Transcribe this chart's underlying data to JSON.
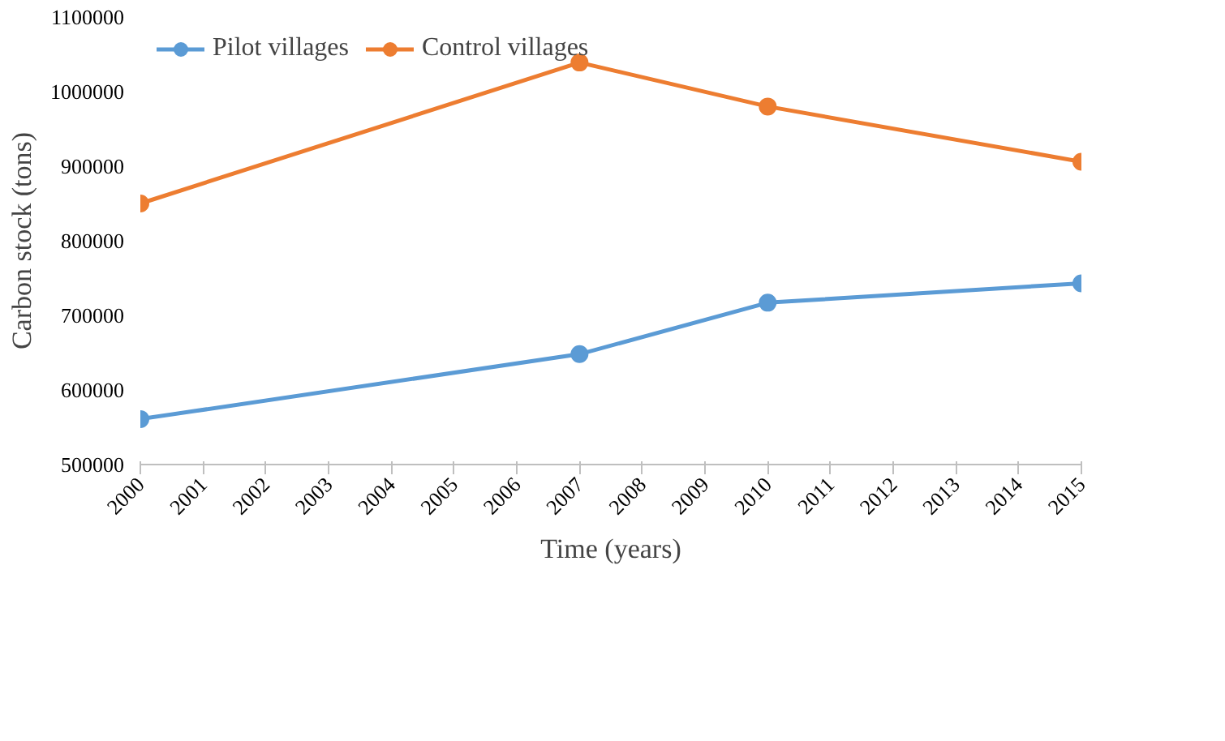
{
  "chart_data": {
    "type": "line",
    "xlabel": "Time (years)",
    "ylabel": "Carbon stock (tons)",
    "x": [
      2000,
      2007,
      2010,
      2015
    ],
    "series": [
      {
        "name": "Pilot villages",
        "color": "#5b9bd5",
        "values": [
          561000,
          648000,
          717000,
          743000
        ]
      },
      {
        "name": "Control villages",
        "color": "#ed7d31",
        "values": [
          850000,
          1039000,
          980000,
          906000
        ]
      }
    ],
    "xlim": [
      2000,
      2015
    ],
    "xticks": [
      2000,
      2001,
      2002,
      2003,
      2004,
      2005,
      2006,
      2007,
      2008,
      2009,
      2010,
      2011,
      2012,
      2013,
      2014,
      2015
    ],
    "ylim": [
      500000,
      1100000
    ],
    "yticks": [
      500000,
      600000,
      700000,
      800000,
      900000,
      1000000,
      1100000
    ],
    "grid": false,
    "legend": "top",
    "marker": "circle",
    "line_style": "solid"
  }
}
